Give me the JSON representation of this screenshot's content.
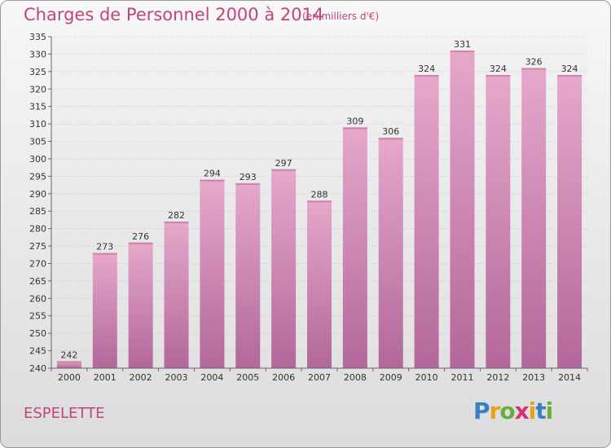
{
  "chart_data": {
    "type": "bar",
    "title": "Charges de Personnel 2000 à 2014",
    "subtitle": "(en milliers d'€)",
    "categories": [
      "2000",
      "2001",
      "2002",
      "2003",
      "2004",
      "2005",
      "2006",
      "2007",
      "2008",
      "2009",
      "2010",
      "2011",
      "2012",
      "2013",
      "2014"
    ],
    "values": [
      242,
      273,
      276,
      282,
      294,
      293,
      297,
      288,
      309,
      306,
      324,
      331,
      324,
      326,
      324
    ],
    "ylim": [
      240,
      335
    ],
    "ytick_step": 5,
    "grid": true,
    "bar_color": "#d98db5"
  },
  "footer": {
    "commune": "ESPELETTE",
    "logo": {
      "letters": [
        "P",
        "r",
        "o",
        "x",
        "i",
        "t",
        "i"
      ],
      "colors": [
        "#3a7fc6",
        "#e8a21a",
        "#6aae3a",
        "#d6336c",
        "#e8a21a",
        "#3a7fc6",
        "#6aae3a"
      ]
    }
  }
}
